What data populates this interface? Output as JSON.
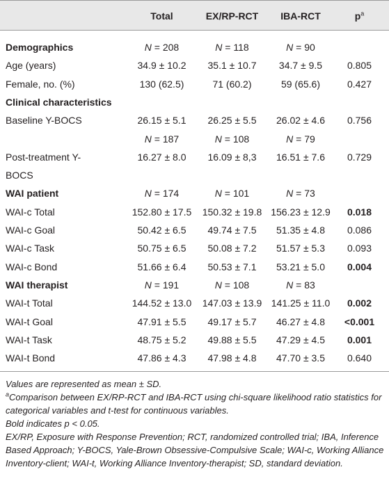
{
  "table": {
    "header": {
      "columns": [
        "Total",
        "EX/RP-RCT",
        "IBA-RCT"
      ],
      "p": "p",
      "p_superscript": "a"
    },
    "rows": [
      {
        "label": "Demographics",
        "section": true,
        "cells": [
          "N = 208",
          "N = 118",
          "N = 90"
        ]
      },
      {
        "label": "Age (years)",
        "cells": [
          "34.9 ± 10.2",
          "35.1 ± 10.7",
          "34.7 ± 9.5"
        ],
        "p": "0.805"
      },
      {
        "label": "Female, no. (%)",
        "cells": [
          "130 (62.5)",
          "71 (60.2)",
          "59 (65.6)"
        ],
        "p": "0.427"
      },
      {
        "label": "Clinical characteristics",
        "section": true
      },
      {
        "label": "Baseline Y-BOCS",
        "cells": [
          "26.15 ± 5.1",
          "26.25 ± 5.5",
          "26.02 ± 4.6"
        ],
        "p": "0.756"
      },
      {
        "cells": [
          "N = 187",
          "N = 108",
          "N = 79"
        ]
      },
      {
        "label": "Post-treatment Y-BOCS",
        "cells": [
          "16.27 ± 8.0",
          "16.09 ± 8,3",
          "16.51 ± 7.6"
        ],
        "p": "0.729"
      },
      {
        "label": "WAI patient",
        "section": true,
        "cells": [
          "N = 174",
          "N = 101",
          "N = 73"
        ]
      },
      {
        "label": "WAI-c Total",
        "cells": [
          "152.80 ± 17.5",
          "150.32 ± 19.8",
          "156.23 ± 12.9"
        ],
        "p": "0.018",
        "p_bold": true
      },
      {
        "label": "WAI-c Goal",
        "cells": [
          "50.42 ± 6.5",
          "49.74 ± 7.5",
          "51.35 ± 4.8"
        ],
        "p": "0.086"
      },
      {
        "label": "WAI-c Task",
        "cells": [
          "50.75 ± 6.5",
          "50.08 ± 7.2",
          "51.57 ± 5.3"
        ],
        "p": "0.093"
      },
      {
        "label": "WAI-c Bond",
        "cells": [
          "51.66 ± 6.4",
          "50.53 ± 7.1",
          "53.21 ± 5.0"
        ],
        "p": "0.004",
        "p_bold": true
      },
      {
        "label": "WAI therapist",
        "section": true,
        "cells": [
          "N = 191",
          "N = 108",
          "N = 83"
        ]
      },
      {
        "label": "WAI-t Total",
        "cells": [
          "144.52 ± 13.0",
          "147.03 ± 13.9",
          "141.25 ± 11.0"
        ],
        "p": "0.002",
        "p_bold": true
      },
      {
        "label": "WAI-t Goal",
        "cells": [
          "47.91 ± 5.5",
          "49.17 ± 5.7",
          "46.27 ± 4.8"
        ],
        "p": "<0.001",
        "p_bold": true
      },
      {
        "label": "WAI-t Task",
        "cells": [
          "48.75 ± 5.2",
          "49.88 ± 5.5",
          "47.29 ± 4.5"
        ],
        "p": "0.001",
        "p_bold": true
      },
      {
        "label": "WAI-t Bond",
        "cells": [
          "47.86 ± 4.3",
          "47.98 ± 4.8",
          "47.70 ± 3.5"
        ],
        "p": "0.640"
      }
    ]
  },
  "notes": {
    "values_note": "Values are represented as mean ± SD.",
    "a_marker": "a",
    "a_note": "Comparison between EX/RP-RCT and IBA-RCT using chi-square likelihood ratio statistics for categorical variables and t-test for continuous variables.",
    "bold_note": "Bold indicates p < 0.05.",
    "abbreviations": "EX/RP, Exposure with Response Prevention; RCT, randomized controlled trial; IBA, Inference Based Approach; Y-BOCS, Yale-Brown Obsessive-Compulsive Scale; WAI-c, Working Alliance Inventory-client; WAI-t, Working Alliance Inventory-therapist; SD, standard deviation."
  }
}
